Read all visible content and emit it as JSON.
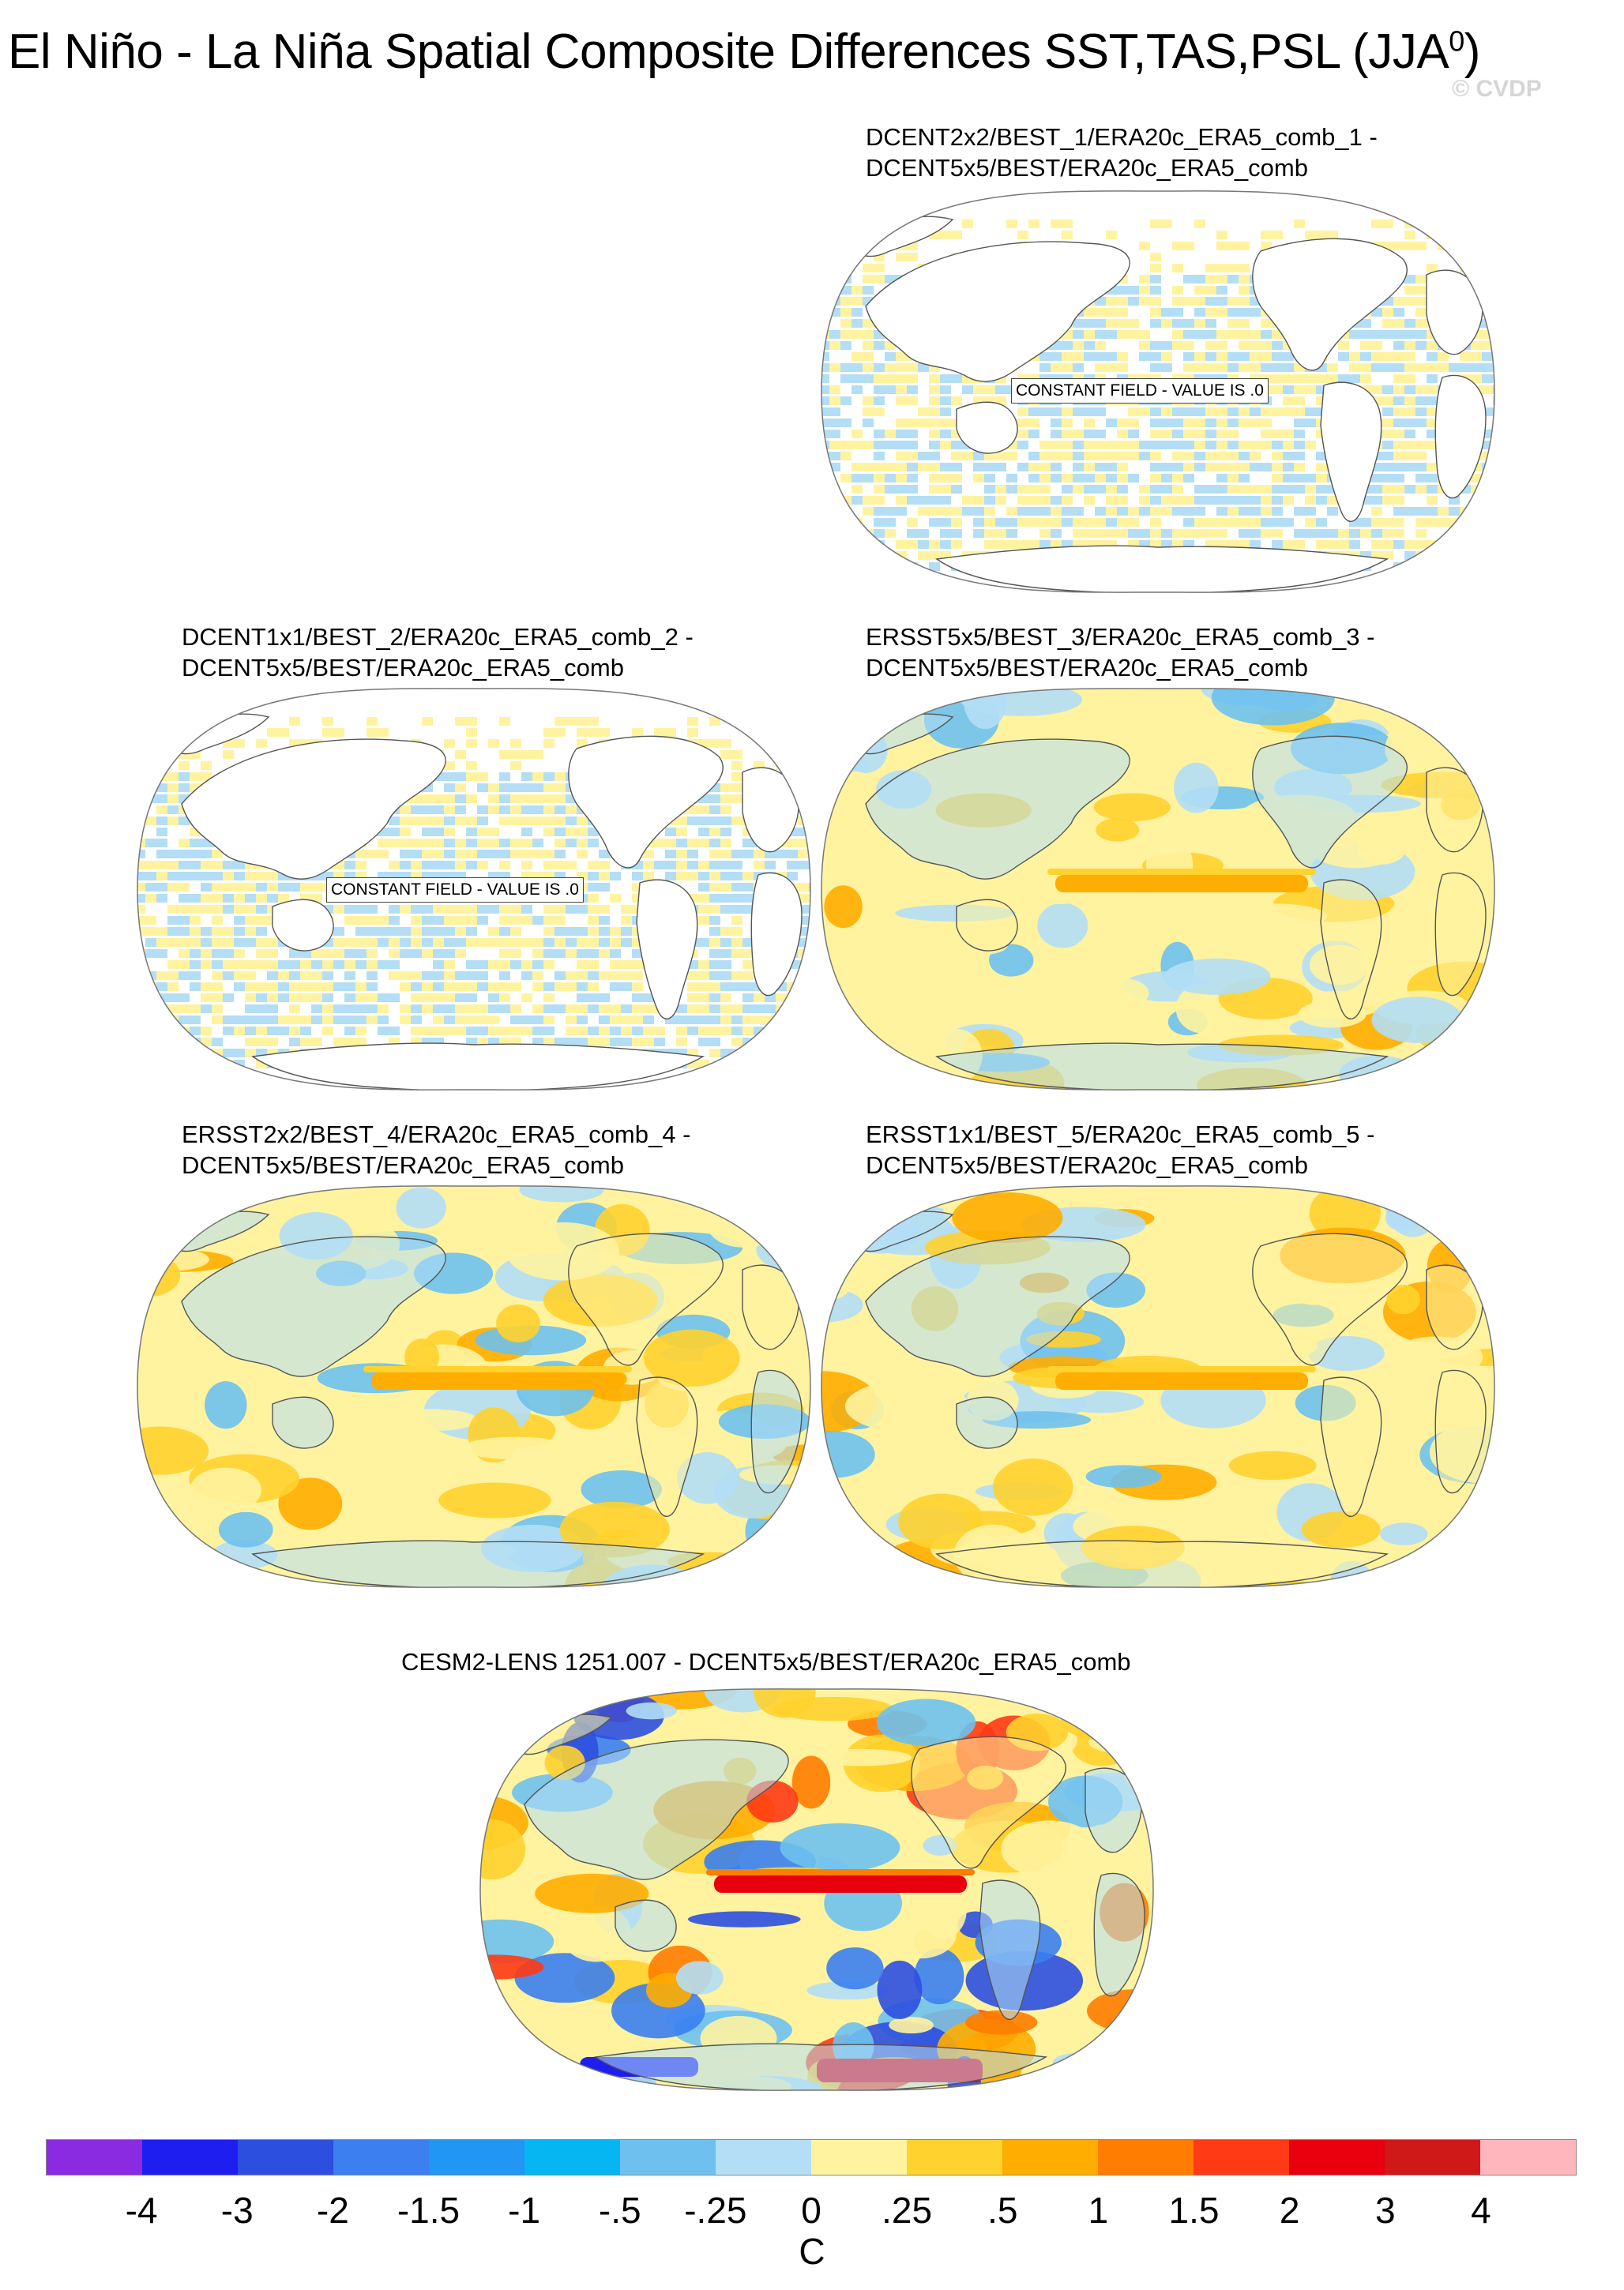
{
  "title": {
    "main": "El Niño - La Niña Spatial Composite Differences SST,TAS,PSL (JJA",
    "superscript": "0",
    "close": ")",
    "credit": "© CVDP"
  },
  "panels": [
    {
      "id": "panel-1",
      "title_line1": "DCENT2x2/BEST_1/ERA20c_ERA5_comb_1 -",
      "title_line2": "DCENT5x5/BEST/ERA20c_ERA5_comb",
      "field": "constant",
      "note": "CONSTANT FIELD - VALUE IS .0"
    },
    {
      "id": "panel-2",
      "title_line1": "DCENT1x1/BEST_2/ERA20c_ERA5_comb_2 -",
      "title_line2": "DCENT5x5/BEST/ERA20c_ERA5_comb",
      "field": "constant",
      "note": "CONSTANT FIELD - VALUE IS .0"
    },
    {
      "id": "panel-3",
      "title_line1": "ERSST5x5/BEST_3/ERA20c_ERA5_comb_3 -",
      "title_line2": "DCENT5x5/BEST/ERA20c_ERA5_comb",
      "field": "anomaly"
    },
    {
      "id": "panel-4",
      "title_line1": "ERSST2x2/BEST_4/ERA20c_ERA5_comb_4 -",
      "title_line2": "DCENT5x5/BEST/ERA20c_ERA5_comb",
      "field": "anomaly"
    },
    {
      "id": "panel-5",
      "title_line1": "ERSST1x1/BEST_5/ERA20c_ERA5_comb_5 -",
      "title_line2": "DCENT5x5/BEST/ERA20c_ERA5_comb",
      "field": "anomaly"
    },
    {
      "id": "panel-6",
      "title_line1": "CESM2-LENS 1251.007 - DCENT5x5/BEST/ERA20c_ERA5_comb",
      "title_line2": "",
      "field": "strong-anomaly"
    }
  ],
  "colorbar": {
    "units": "C",
    "colors": [
      "#8a2be2",
      "#1e1ef0",
      "#2c4fe0",
      "#3b7ff0",
      "#2196f3",
      "#06b6f2",
      "#6ec1ee",
      "#b3def5",
      "#fff3a0",
      "#ffd22e",
      "#ffad00",
      "#ff7d00",
      "#ff3a14",
      "#e8000f",
      "#cf1818",
      "#ffb6bc"
    ],
    "labels": [
      "-4",
      "-3",
      "-2",
      "-1.5",
      "-1",
      "-.5",
      "-.25",
      "0",
      ".25",
      ".5",
      "1",
      "1.5",
      "2",
      "3",
      "4"
    ]
  }
}
